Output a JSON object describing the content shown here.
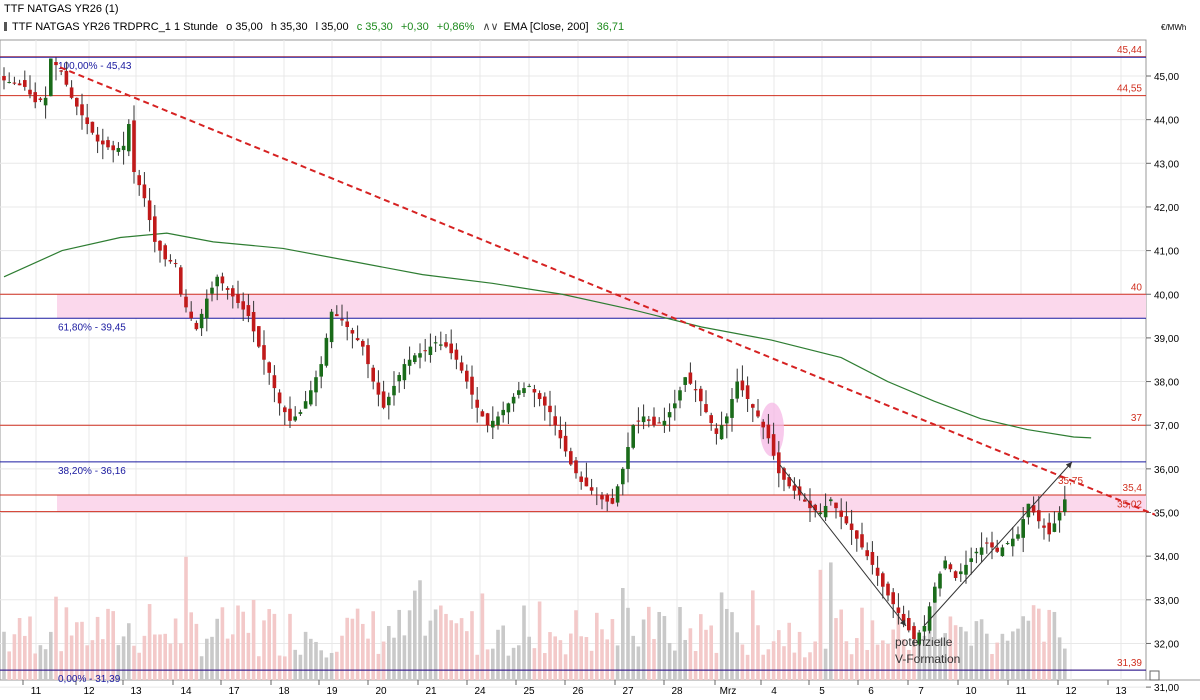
{
  "header": {
    "title": "TTF NATGAS YR26 (1)",
    "instrument": "TTF NATGAS YR26 TRDPRC_1 1 Stunde",
    "open": "o 35,00",
    "high": "h 35,30",
    "low": "l 35,00",
    "close": "c 35,30",
    "change": "+0,30",
    "change_pct": "+0,86%",
    "ema_label": "EMA [Close, 200]",
    "ema_value": "36,71",
    "unit": "€/MWh"
  },
  "colors": {
    "bull": "#1a6b1a",
    "bear": "#c01a1a",
    "ema": "#2e7d32",
    "trendline": "#d62222",
    "fib": "#1a1aa0",
    "level": "#d03020",
    "zone": "#fbd8ec",
    "grid": "#e8e8e8",
    "volume_up": "#c9c9c9",
    "volume_down": "#f3c9c9"
  },
  "chart_data": {
    "type": "candlestick",
    "title": "TTF NATGAS YR26 (1)",
    "xlabel": "",
    "ylabel": "€/MWh",
    "ylim": [
      30.5,
      45.8
    ],
    "grid": true,
    "x_ticks": [
      "11",
      "12",
      "13",
      "14",
      "17",
      "18",
      "19",
      "20",
      "21",
      "24",
      "25",
      "26",
      "27",
      "28",
      "Mrz",
      "4",
      "5",
      "6",
      "7",
      "10",
      "11",
      "12",
      "13"
    ],
    "y_ticks": [
      "31,00",
      "32,00",
      "33,00",
      "34,00",
      "35,00",
      "36,00",
      "37,00",
      "38,00",
      "39,00",
      "40,00",
      "41,00",
      "42,00",
      "43,00",
      "44,00",
      "45,00"
    ],
    "y_tick_values": [
      31,
      32,
      33,
      34,
      35,
      36,
      37,
      38,
      39,
      40,
      41,
      42,
      43,
      44,
      45
    ],
    "price_anchors": [
      [
        0,
        44.9
      ],
      [
        4,
        44.75
      ],
      [
        6,
        44.4
      ],
      [
        8,
        44.5
      ],
      [
        9,
        45.4
      ],
      [
        11,
        45.1
      ],
      [
        13,
        44.5
      ],
      [
        16,
        43.9
      ],
      [
        18,
        43.5
      ],
      [
        21,
        43.3
      ],
      [
        23,
        43.4
      ],
      [
        24,
        43.9
      ],
      [
        25,
        42.8
      ],
      [
        27,
        42.2
      ],
      [
        29,
        41.2
      ],
      [
        31,
        40.8
      ],
      [
        33,
        40.7
      ],
      [
        34,
        40.0
      ],
      [
        35,
        39.7
      ],
      [
        37,
        39.2
      ],
      [
        39,
        39.9
      ],
      [
        41,
        40.4
      ],
      [
        43,
        40.1
      ],
      [
        45,
        39.8
      ],
      [
        47,
        39.5
      ],
      [
        49,
        38.8
      ],
      [
        51,
        38.2
      ],
      [
        53,
        37.5
      ],
      [
        55,
        37.1
      ],
      [
        57,
        37.3
      ],
      [
        59,
        37.8
      ],
      [
        61,
        38.4
      ],
      [
        63,
        39.6
      ],
      [
        65,
        39.4
      ],
      [
        67,
        39.1
      ],
      [
        69,
        38.8
      ],
      [
        71,
        38.0
      ],
      [
        73,
        37.4
      ],
      [
        75,
        37.9
      ],
      [
        77,
        38.4
      ],
      [
        79,
        38.6
      ],
      [
        81,
        38.7
      ],
      [
        83,
        38.9
      ],
      [
        85,
        38.8
      ],
      [
        87,
        38.5
      ],
      [
        89,
        38.0
      ],
      [
        91,
        37.4
      ],
      [
        93,
        37.0
      ],
      [
        95,
        37.2
      ],
      [
        97,
        37.5
      ],
      [
        99,
        37.8
      ],
      [
        101,
        37.9
      ],
      [
        103,
        37.6
      ],
      [
        105,
        37.3
      ],
      [
        107,
        36.7
      ],
      [
        109,
        36.1
      ],
      [
        111,
        35.7
      ],
      [
        113,
        35.5
      ],
      [
        115,
        35.3
      ],
      [
        117,
        35.2
      ],
      [
        119,
        36.0
      ],
      [
        121,
        37.0
      ],
      [
        123,
        37.2
      ],
      [
        125,
        37.0
      ],
      [
        127,
        37.1
      ],
      [
        129,
        37.5
      ],
      [
        131,
        38.1
      ],
      [
        133,
        37.8
      ],
      [
        135,
        37.3
      ],
      [
        137,
        36.8
      ],
      [
        139,
        37.2
      ],
      [
        141,
        38.0
      ],
      [
        143,
        37.6
      ],
      [
        145,
        37.2
      ],
      [
        147,
        36.7
      ],
      [
        149,
        35.9
      ],
      [
        151,
        35.6
      ],
      [
        153,
        35.4
      ],
      [
        155,
        35.1
      ],
      [
        157,
        35.0
      ],
      [
        159,
        35.3
      ],
      [
        161,
        34.9
      ],
      [
        163,
        34.6
      ],
      [
        165,
        34.2
      ],
      [
        167,
        33.8
      ],
      [
        169,
        33.3
      ],
      [
        171,
        32.9
      ],
      [
        173,
        32.5
      ],
      [
        175,
        32.1
      ],
      [
        177,
        32.4
      ],
      [
        179,
        33.3
      ],
      [
        181,
        33.9
      ],
      [
        183,
        33.5
      ],
      [
        185,
        33.8
      ],
      [
        187,
        34.1
      ],
      [
        189,
        34.3
      ],
      [
        191,
        34.1
      ],
      [
        193,
        34.3
      ],
      [
        195,
        34.5
      ],
      [
        197,
        35.2
      ],
      [
        199,
        34.8
      ],
      [
        201,
        34.5
      ],
      [
        203,
        35.0
      ],
      [
        204,
        35.3
      ]
    ],
    "candle_count": 205,
    "ema_points": [
      [
        0,
        40.4
      ],
      [
        10,
        41.0
      ],
      [
        20,
        41.3
      ],
      [
        28,
        41.4
      ],
      [
        36,
        41.2
      ],
      [
        48,
        41.05
      ],
      [
        60,
        40.75
      ],
      [
        72,
        40.45
      ],
      [
        84,
        40.25
      ],
      [
        96,
        40.0
      ],
      [
        108,
        39.65
      ],
      [
        120,
        39.25
      ],
      [
        132,
        38.95
      ],
      [
        144,
        38.55
      ],
      [
        152,
        38.0
      ],
      [
        160,
        37.55
      ],
      [
        168,
        37.15
      ],
      [
        176,
        36.9
      ],
      [
        184,
        36.73
      ],
      [
        187,
        36.71
      ]
    ],
    "volume_scale": [
      0,
      9
    ],
    "horizontal_levels": [
      {
        "value": 45.44,
        "label": "45,44",
        "kind": "level"
      },
      {
        "value": 44.55,
        "label": "44,55",
        "kind": "level"
      },
      {
        "value": 40.0,
        "label": "40",
        "kind": "level"
      },
      {
        "value": 37.0,
        "label": "37",
        "kind": "level"
      },
      {
        "value": 35.4,
        "label": "35,4",
        "kind": "level"
      },
      {
        "value": 35.02,
        "label": "35,02",
        "kind": "level"
      },
      {
        "value": 31.39,
        "label": "31,39",
        "kind": "level"
      }
    ],
    "fib_levels": [
      {
        "value": 45.43,
        "label": "100,00% - 45,43"
      },
      {
        "value": 39.45,
        "label": "61,80% - 39,45"
      },
      {
        "value": 36.16,
        "label": "38,20% - 36,16"
      },
      {
        "value": 31.39,
        "label": "0,00% - 31,39"
      }
    ],
    "zones": [
      {
        "from": 39.45,
        "to": 40.0
      },
      {
        "from": 35.02,
        "to": 35.4
      }
    ],
    "trendline": {
      "start_price": 45.2,
      "end_price": 34.95,
      "label": "35,75"
    },
    "annotation": {
      "text_line1": "potenzielle",
      "text_line2": "V-Formation"
    }
  }
}
